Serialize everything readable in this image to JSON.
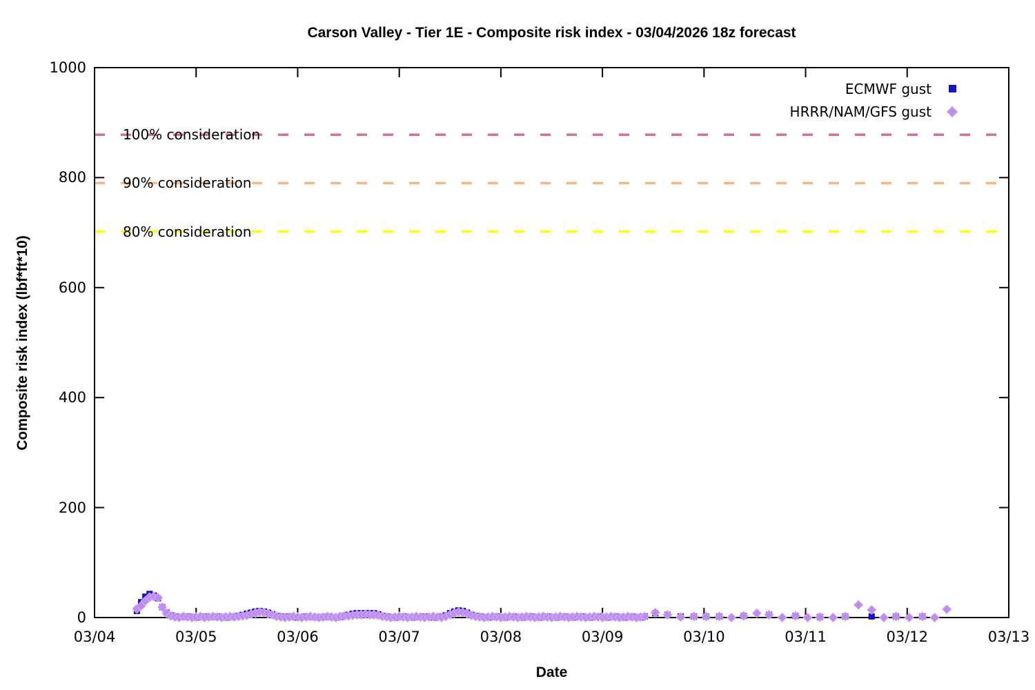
{
  "title": "Carson Valley - Tier 1E - Composite risk index - 03/04/2026 18z forecast",
  "chart_data": {
    "type": "scatter",
    "title": "Carson Valley - Tier 1E - Composite risk index - 03/04/2026 18z forecast",
    "xlabel": "Date",
    "ylabel": "Composite risk index (lbf*ft*10)",
    "x_tick_labels": [
      "03/04",
      "03/05",
      "03/06",
      "03/07",
      "03/08",
      "03/09",
      "03/10",
      "03/11",
      "03/12",
      "03/13"
    ],
    "y_tick_labels": [
      "0",
      "200",
      "400",
      "600",
      "800",
      "1000"
    ],
    "y_ticks": [
      0,
      200,
      400,
      600,
      800,
      1000
    ],
    "ylim": [
      0,
      1000
    ],
    "xlim_days": [
      0,
      9
    ],
    "grid": "off",
    "legend_position": "top-right-inside",
    "thresholds": [
      {
        "label": "100% consideration",
        "value": 878,
        "color": "#d9708a"
      },
      {
        "label": "90% consideration",
        "value": 790,
        "color": "#f6b67f"
      },
      {
        "label": "80% consideration",
        "value": 702,
        "color": "#ffff00"
      }
    ],
    "series": [
      {
        "name": "ECMWF gust",
        "marker": "square",
        "color": "#1212d1",
        "dense": {
          "start_day": 0.4167,
          "step_days": 0.041667,
          "values": [
            12,
            28,
            38,
            43,
            40,
            35,
            19,
            9,
            4,
            2,
            1,
            1,
            2,
            1,
            0,
            1,
            2,
            1,
            1,
            2,
            1,
            0,
            1,
            2,
            3,
            5,
            7,
            9,
            11,
            12,
            11,
            9,
            6,
            3,
            2,
            1,
            2,
            1,
            0,
            1,
            2,
            1,
            1,
            0,
            1,
            2,
            1,
            0,
            1,
            3,
            5,
            7,
            8,
            8,
            8,
            8,
            8,
            6,
            3,
            2,
            1,
            0,
            1,
            2,
            1,
            0,
            1,
            1,
            2,
            1,
            0,
            1,
            2,
            4,
            8,
            11,
            13,
            12,
            9,
            5,
            3,
            2,
            1,
            0,
            1,
            2,
            1,
            0,
            1,
            2,
            1,
            0,
            1,
            2,
            1,
            0,
            1,
            2,
            1,
            0,
            1,
            2,
            1,
            0,
            1,
            2,
            1,
            0,
            1,
            2,
            1,
            0,
            1,
            2,
            1,
            0,
            1,
            2,
            1,
            0,
            2
          ]
        },
        "sparse": [
          [
            5.52,
            8
          ],
          [
            5.64,
            5
          ],
          [
            5.77,
            2
          ],
          [
            5.9,
            2
          ],
          [
            6.02,
            2
          ],
          [
            6.15,
            2
          ],
          [
            6.39,
            3
          ],
          [
            6.64,
            5
          ],
          [
            6.9,
            3
          ],
          [
            7.14,
            1
          ],
          [
            7.39,
            2
          ],
          [
            7.65,
            2
          ],
          [
            7.89,
            2
          ],
          [
            8.15,
            2
          ]
        ]
      },
      {
        "name": "HRRR/NAM/GFS gust",
        "marker": "diamond",
        "color": "#be8cee",
        "dense": {
          "start_day": 0.4167,
          "step_days": 0.041667,
          "values": [
            16,
            21,
            30,
            37,
            38,
            36,
            19,
            8,
            3,
            1,
            0,
            2,
            1,
            0,
            1,
            2,
            0,
            1,
            2,
            1,
            0,
            1,
            2,
            1,
            2,
            3,
            4,
            6,
            8,
            10,
            9,
            7,
            5,
            2,
            1,
            0,
            1,
            2,
            1,
            0,
            1,
            2,
            1,
            0,
            1,
            2,
            1,
            0,
            2,
            3,
            3,
            4,
            5,
            5,
            6,
            5,
            5,
            4,
            2,
            1,
            0,
            1,
            2,
            1,
            0,
            1,
            2,
            1,
            0,
            1,
            2,
            1,
            0,
            2,
            5,
            8,
            10,
            9,
            7,
            4,
            2,
            1,
            0,
            1,
            2,
            1,
            0,
            1,
            2,
            1,
            0,
            1,
            2,
            1,
            0,
            1,
            2,
            1,
            0,
            1,
            2,
            1,
            0,
            1,
            2,
            1,
            0,
            1,
            2,
            1,
            0,
            1,
            2,
            1,
            0,
            1,
            2,
            1,
            0,
            1,
            2
          ]
        },
        "sparse": [
          [
            5.52,
            9
          ],
          [
            5.64,
            5
          ],
          [
            5.77,
            1
          ],
          [
            5.9,
            2
          ],
          [
            6.02,
            2
          ],
          [
            6.15,
            2
          ],
          [
            6.27,
            0
          ],
          [
            6.39,
            3
          ],
          [
            6.52,
            8
          ],
          [
            6.64,
            5
          ],
          [
            6.77,
            0
          ],
          [
            6.9,
            3
          ],
          [
            7.02,
            0
          ],
          [
            7.14,
            1
          ],
          [
            7.27,
            0
          ],
          [
            7.39,
            2
          ],
          [
            7.52,
            23
          ],
          [
            7.65,
            14
          ],
          [
            7.77,
            0
          ],
          [
            7.89,
            2
          ],
          [
            8.02,
            0
          ],
          [
            8.15,
            2
          ],
          [
            8.27,
            0
          ],
          [
            8.39,
            15
          ]
        ]
      }
    ]
  }
}
